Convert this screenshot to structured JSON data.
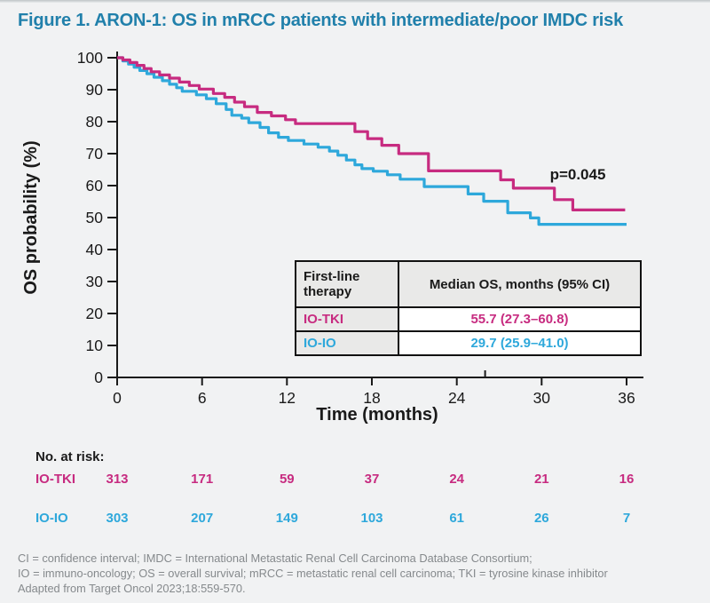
{
  "title": "Figure 1. ARON-1: OS in mRCC patients with intermediate/poor IMDC risk",
  "colors": {
    "title_text": "#2180ab",
    "io_tki": "#c72b80",
    "io_io": "#2ea8db",
    "axis_black": "#1a1a1a",
    "background": "#f1f2f3",
    "table_shade": "#e9e9e8",
    "footnote_text": "#85898c"
  },
  "chart_data": {
    "type": "line",
    "subtype": "kaplan-meier-step",
    "title": "ARON-1: OS in mRCC patients with intermediate/poor IMDC risk",
    "xlabel": "Time (months)",
    "ylabel": "OS probability (%)",
    "xlim": [
      0,
      36
    ],
    "ylim": [
      0,
      100
    ],
    "x_ticks": [
      0,
      6,
      12,
      18,
      24,
      30,
      36
    ],
    "y_ticks": [
      0,
      10,
      20,
      30,
      40,
      50,
      60,
      70,
      80,
      90,
      100
    ],
    "minor_tick_month": 26,
    "grid": false,
    "annotation": "p=0.045",
    "legend_position": "in-plot table",
    "series": [
      {
        "name": "IO-IO",
        "color": "#2ea8db",
        "end_month": 36.0,
        "points": [
          [
            0,
            100
          ],
          [
            0.4,
            99.0
          ],
          [
            0.8,
            98.0
          ],
          [
            1.2,
            97.0
          ],
          [
            1.6,
            96.0
          ],
          [
            2.1,
            95.0
          ],
          [
            2.6,
            93.9
          ],
          [
            3.2,
            92.8
          ],
          [
            3.7,
            91.7
          ],
          [
            4.2,
            90.6
          ],
          [
            4.6,
            89.5
          ],
          [
            5.6,
            88.4
          ],
          [
            6.3,
            87.2
          ],
          [
            7.0,
            85.6
          ],
          [
            7.7,
            83.8
          ],
          [
            8.1,
            82.0
          ],
          [
            8.8,
            81.1
          ],
          [
            9.3,
            79.7
          ],
          [
            10.1,
            78.2
          ],
          [
            10.7,
            76.5
          ],
          [
            11.4,
            75.1
          ],
          [
            12.1,
            74.1
          ],
          [
            13.2,
            73.0
          ],
          [
            14.2,
            72.0
          ],
          [
            15.0,
            70.8
          ],
          [
            15.6,
            69.5
          ],
          [
            16.2,
            68.0
          ],
          [
            16.8,
            66.5
          ],
          [
            17.3,
            65.3
          ],
          [
            18.1,
            64.5
          ],
          [
            19.1,
            63.4
          ],
          [
            20.0,
            62.0
          ],
          [
            21.7,
            59.7
          ],
          [
            24.8,
            57.4
          ],
          [
            25.9,
            55.1
          ],
          [
            27.6,
            51.5
          ],
          [
            29.2,
            49.9
          ],
          [
            29.8,
            47.9
          ]
        ]
      },
      {
        "name": "IO-TKI",
        "color": "#c72b80",
        "end_month": 35.9,
        "points": [
          [
            0,
            100
          ],
          [
            0.4,
            99.3
          ],
          [
            0.9,
            98.5
          ],
          [
            1.4,
            97.6
          ],
          [
            1.9,
            96.6
          ],
          [
            2.4,
            95.6
          ],
          [
            3.0,
            94.6
          ],
          [
            3.7,
            93.6
          ],
          [
            4.4,
            92.4
          ],
          [
            5.1,
            91.3
          ],
          [
            5.8,
            90.2
          ],
          [
            6.8,
            88.8
          ],
          [
            7.6,
            87.6
          ],
          [
            8.3,
            86.1
          ],
          [
            9.0,
            84.7
          ],
          [
            9.9,
            82.9
          ],
          [
            10.9,
            81.8
          ],
          [
            11.9,
            80.6
          ],
          [
            12.6,
            79.4
          ],
          [
            16.8,
            76.9
          ],
          [
            17.7,
            74.7
          ],
          [
            18.7,
            72.6
          ],
          [
            19.9,
            70.0
          ],
          [
            22.0,
            64.6
          ],
          [
            27.1,
            61.8
          ],
          [
            28.0,
            59.2
          ],
          [
            30.9,
            55.6
          ],
          [
            32.2,
            52.4
          ]
        ]
      }
    ]
  },
  "median_table": {
    "header": [
      "First-line therapy",
      "Median OS, months (95% CI)"
    ],
    "rows": [
      {
        "label": "IO-TKI",
        "value": "55.7 (27.3–60.8)",
        "color": "#c72b80"
      },
      {
        "label": "IO-IO",
        "value": "29.7 (25.9–41.0)",
        "color": "#2ea8db"
      }
    ]
  },
  "risk_table": {
    "title": "No. at risk:",
    "months": [
      0,
      6,
      12,
      18,
      24,
      30,
      36
    ],
    "rows": [
      {
        "label": "IO-TKI",
        "color": "#c72b80",
        "counts": [
          313,
          171,
          59,
          37,
          24,
          21,
          16
        ]
      },
      {
        "label": "IO-IO",
        "color": "#2ea8db",
        "counts": [
          303,
          207,
          149,
          103,
          61,
          26,
          7
        ]
      }
    ]
  },
  "footnote": {
    "lines": [
      "CI = confidence interval; IMDC = International Metastatic Renal Cell Carcinoma Database Consortium;",
      "IO = immuno-oncology; OS = overall survival; mRCC = metastatic renal cell carcinoma; TKI = tyrosine kinase inhibitor",
      "Adapted from Target Oncol 2023;18:559-570."
    ]
  }
}
